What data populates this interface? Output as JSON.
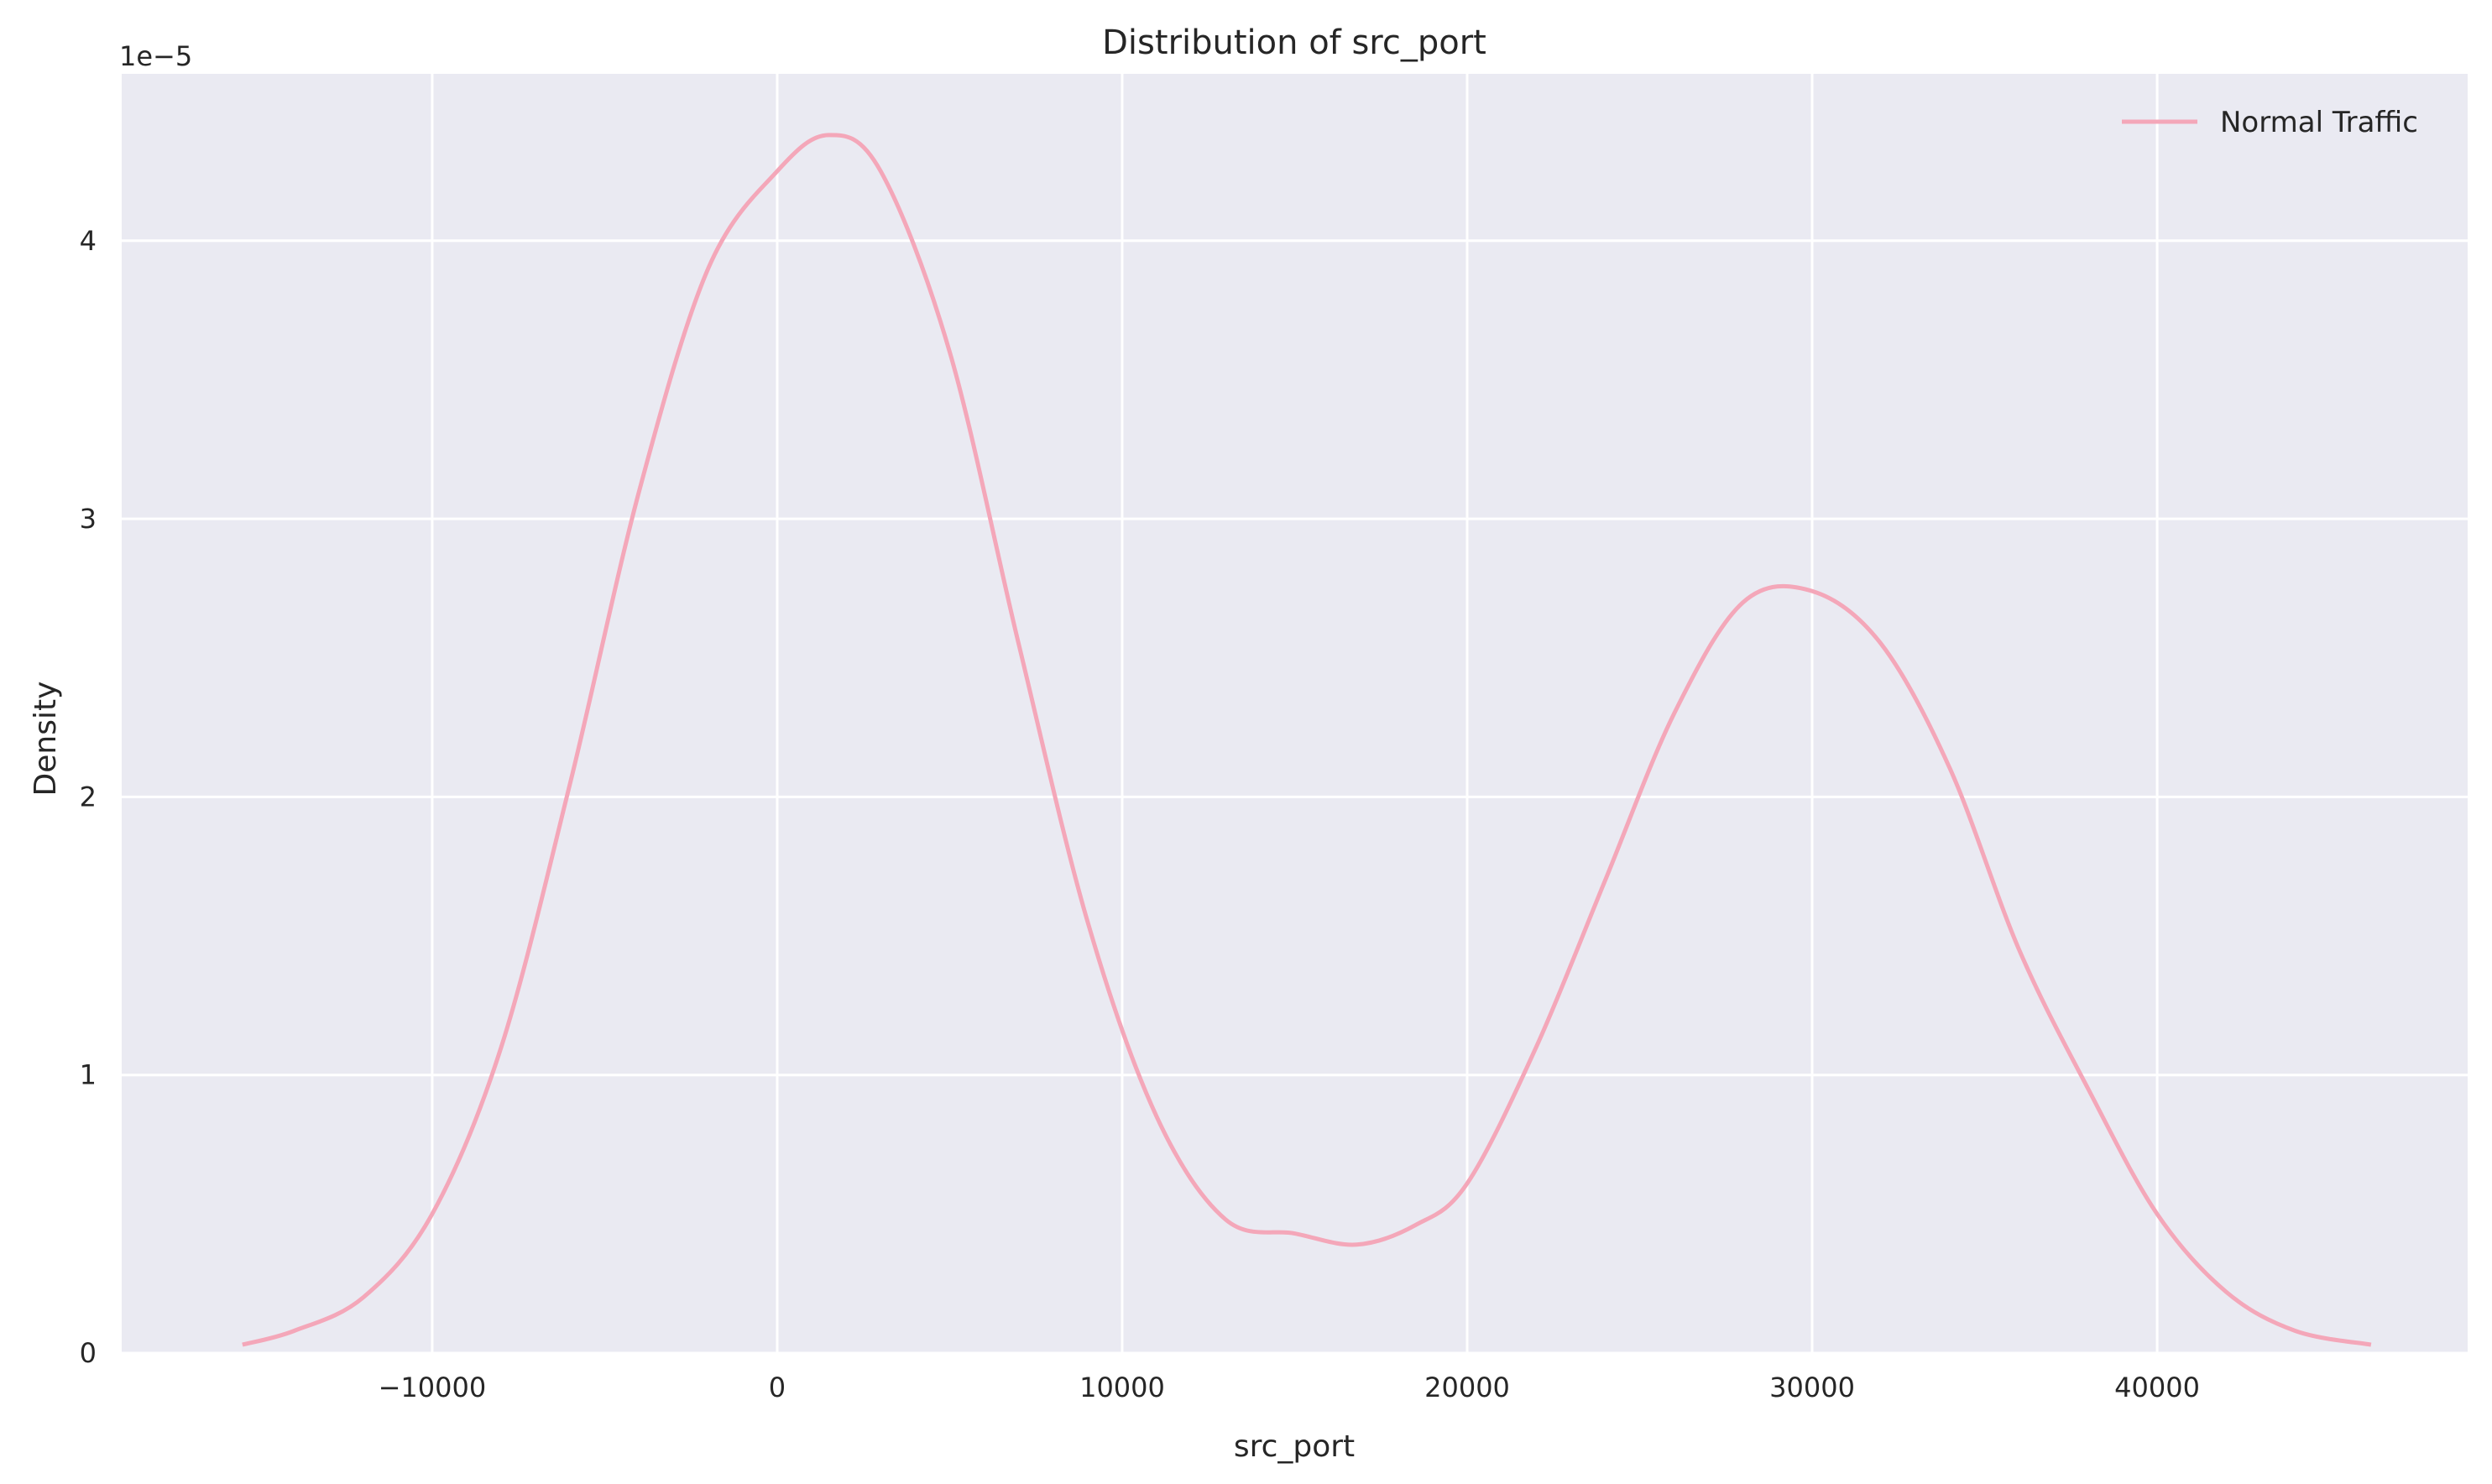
{
  "chart_data": {
    "type": "line",
    "title": "Distribution of src_port",
    "xlabel": "src_port",
    "ylabel": "Density",
    "y_offset_label": "1e−5",
    "xlim": [
      -19000,
      49000
    ],
    "ylim": [
      0,
      4.6
    ],
    "x_ticks": [
      -10000,
      0,
      10000,
      20000,
      30000,
      40000
    ],
    "x_tick_labels": [
      "−10000",
      "0",
      "10000",
      "20000",
      "30000",
      "40000"
    ],
    "y_ticks": [
      0,
      1,
      2,
      3,
      4
    ],
    "y_tick_labels": [
      "0",
      "1",
      "2",
      "3",
      "4"
    ],
    "grid": true,
    "background": "#eaeaf2",
    "legend": {
      "position": "top-right"
    },
    "series": [
      {
        "name": "Normal Traffic",
        "color": "#f4a7b9",
        "x": [
          -15500,
          -14000,
          -12000,
          -10000,
          -8000,
          -6000,
          -4000,
          -2000,
          0,
          1500,
          3000,
          5000,
          7000,
          9000,
          11000,
          13000,
          15000,
          16800,
          18500,
          20000,
          22000,
          24000,
          26000,
          28000,
          30000,
          32000,
          34000,
          36000,
          38000,
          40000,
          42000,
          44000,
          46200
        ],
        "y": [
          0.03,
          0.08,
          0.2,
          0.5,
          1.1,
          2.05,
          3.1,
          3.9,
          4.25,
          4.38,
          4.25,
          3.6,
          2.55,
          1.55,
          0.85,
          0.48,
          0.43,
          0.39,
          0.46,
          0.61,
          1.1,
          1.7,
          2.3,
          2.7,
          2.74,
          2.55,
          2.1,
          1.45,
          0.95,
          0.5,
          0.22,
          0.08,
          0.03
        ]
      }
    ]
  }
}
